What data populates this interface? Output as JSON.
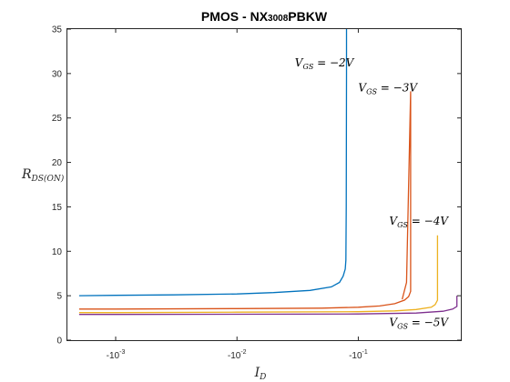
{
  "chart_data": {
    "type": "line",
    "title_main": "PMOS - NX",
    "title_small": "3008",
    "title_end": "PBKW",
    "xlabel_main": "I",
    "xlabel_sub": "D",
    "ylabel_main": "R",
    "ylabel_sub": "DS(ON)",
    "x_scale": "log",
    "x_reversed": true,
    "xlim": [
      -0.0004,
      -0.7
    ],
    "ylim": [
      0,
      35
    ],
    "grid": false,
    "legend": "none",
    "x_tick_values": [
      -0.001,
      -0.01,
      -0.1
    ],
    "x_tick_labels": [
      "-10",
      "-10",
      "-10"
    ],
    "x_tick_exps": [
      "-3",
      "-2",
      "-1"
    ],
    "y_ticks": [
      0,
      5,
      10,
      15,
      20,
      25,
      30,
      35
    ],
    "y_tick_labels": [
      "0",
      "5",
      "10",
      "15",
      "20",
      "25",
      "30",
      "35"
    ],
    "series": [
      {
        "color": "#0072BD",
        "x": [
          -0.0005,
          -0.001,
          -0.003,
          -0.01,
          -0.02,
          -0.04,
          -0.06,
          -0.07,
          -0.075,
          -0.078,
          -0.079,
          -0.0795,
          -0.08,
          -0.08
        ],
        "y": [
          5.0,
          5.05,
          5.1,
          5.2,
          5.35,
          5.6,
          6.0,
          6.5,
          7.2,
          8.0,
          9.0,
          15.0,
          30.0,
          35.0
        ]
      },
      {
        "color": "#D95319",
        "x": [
          -0.0005,
          -0.001,
          -0.01,
          -0.05,
          -0.1,
          -0.15,
          -0.2,
          -0.24,
          -0.26,
          -0.27,
          -0.27,
          -0.27,
          -0.27,
          -0.25,
          -0.23
        ],
        "y": [
          3.5,
          3.5,
          3.55,
          3.6,
          3.7,
          3.85,
          4.1,
          4.5,
          4.9,
          5.5,
          8.0,
          15.0,
          28.0,
          6.5,
          4.6
        ]
      },
      {
        "color": "#EDB120",
        "x": [
          -0.0005,
          -0.001,
          -0.01,
          -0.1,
          -0.2,
          -0.3,
          -0.4,
          -0.43,
          -0.45,
          -0.45
        ],
        "y": [
          3.1,
          3.1,
          3.15,
          3.2,
          3.3,
          3.45,
          3.7,
          4.0,
          4.5,
          11.8
        ]
      },
      {
        "color": "#7E2F8E",
        "x": [
          -0.0005,
          -0.001,
          -0.01,
          -0.1,
          -0.3,
          -0.5,
          -0.6,
          -0.65,
          -0.65
        ],
        "y": [
          2.9,
          2.9,
          2.92,
          2.95,
          3.05,
          3.25,
          3.5,
          3.8,
          5.0
        ]
      }
    ],
    "annotations": [
      {
        "label_main": "V",
        "label_sub": "GS",
        "label_rest": " = −2V",
        "x": -0.03,
        "y": 30.8
      },
      {
        "label_main": "V",
        "label_sub": "GS",
        "label_rest": " = −3V",
        "x": -0.1,
        "y": 28.0
      },
      {
        "label_main": "V",
        "label_sub": "GS",
        "label_rest": " = −4V",
        "x": -0.18,
        "y": 13.0
      },
      {
        "label_main": "V",
        "label_sub": "GS",
        "label_rest": " = −5V",
        "x": -0.18,
        "y": 1.6
      }
    ]
  }
}
